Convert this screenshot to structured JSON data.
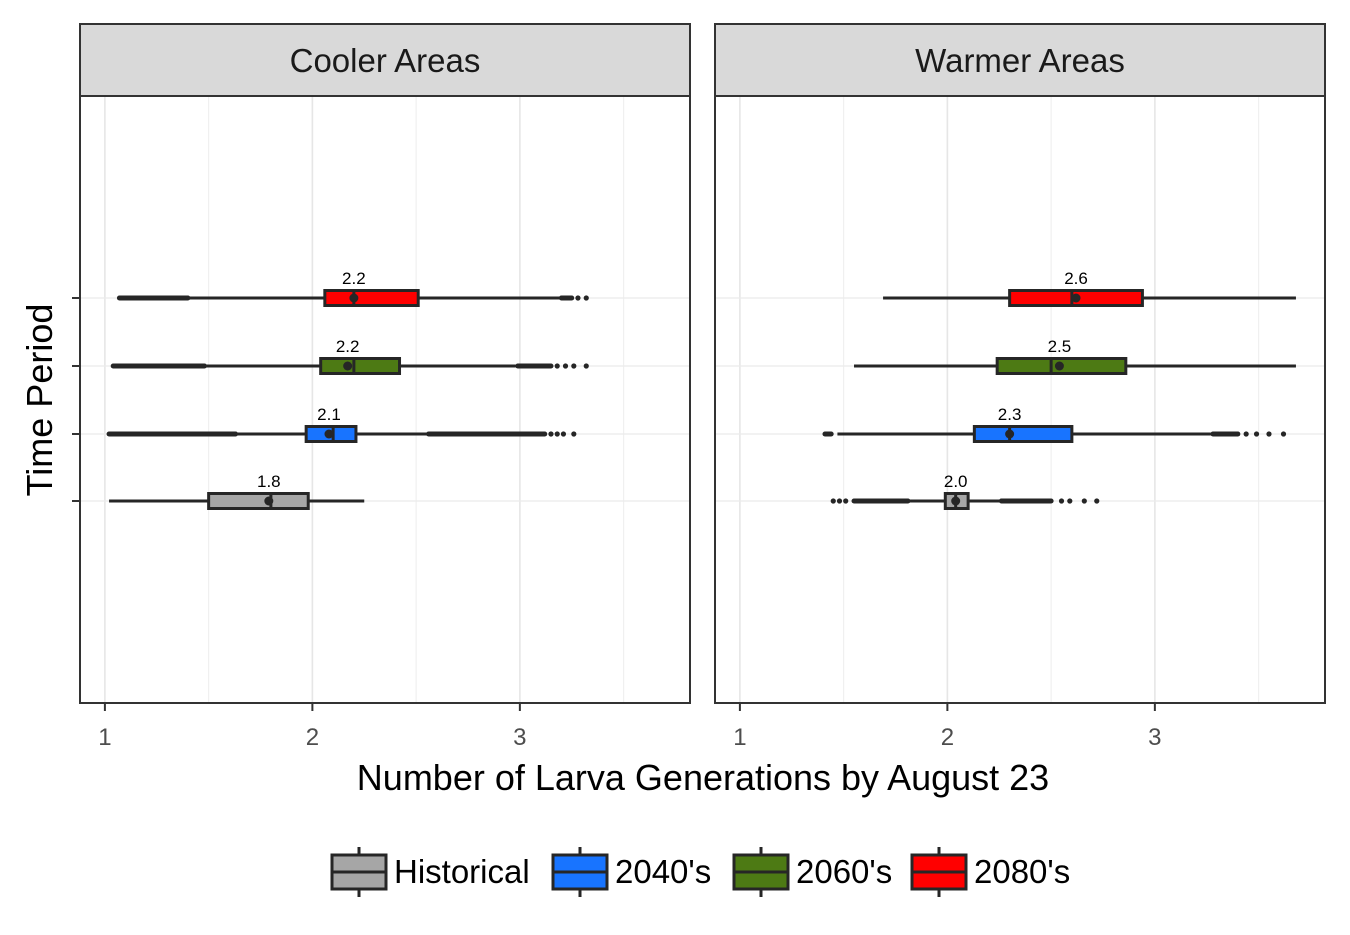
{
  "chart_data": {
    "type": "boxplot",
    "xlabel": "Number of Larva Generations by August 23",
    "ylabel": "Time Period",
    "xlim": [
      0.88,
      3.82
    ],
    "x_ticks": [
      1,
      2,
      3
    ],
    "y_categories": [
      "Historical",
      "2040's",
      "2060's",
      "2080's"
    ],
    "grid": true,
    "legend": {
      "placement": "bottom",
      "entries": [
        {
          "name": "Historical",
          "color": "#A6A6A6"
        },
        {
          "name": "2040's",
          "color": "#1874FF"
        },
        {
          "name": "2060's",
          "color": "#4D7A14"
        },
        {
          "name": "2080's",
          "color": "#FF0000"
        }
      ]
    },
    "panels": [
      {
        "title": "Cooler Areas",
        "series": [
          {
            "name": "Historical",
            "whisker_low": 1.02,
            "q1": 1.5,
            "median": 1.8,
            "q3": 1.98,
            "whisker_high": 2.25,
            "mean": 1.79,
            "label": "1.8",
            "outliers": []
          },
          {
            "name": "2040's",
            "whisker_low": 1.64,
            "q1": 1.97,
            "median": 2.1,
            "q3": 2.21,
            "whisker_high": 2.55,
            "mean": 2.08,
            "label": "2.1",
            "outliers_low_range": [
              1.02,
              1.63
            ],
            "outliers_high_range": [
              2.56,
              3.12
            ],
            "outliers": [
              3.15,
              3.18,
              3.21,
              3.26
            ]
          },
          {
            "name": "2060's",
            "whisker_low": 1.49,
            "q1": 2.04,
            "median": 2.2,
            "q3": 2.42,
            "whisker_high": 2.98,
            "mean": 2.17,
            "label": "2.2",
            "outliers_low_range": [
              1.04,
              1.48
            ],
            "outliers_high_range": [
              2.99,
              3.15
            ],
            "outliers": [
              3.18,
              3.22,
              3.26,
              3.32
            ]
          },
          {
            "name": "2080's",
            "whisker_low": 1.41,
            "q1": 2.06,
            "median": 2.2,
            "q3": 2.51,
            "whisker_high": 3.19,
            "mean": 2.2,
            "label": "2.2",
            "outliers_low_range": [
              1.07,
              1.4
            ],
            "outliers_high_range": [
              3.2,
              3.25
            ],
            "outliers": [
              3.28,
              3.32
            ]
          }
        ]
      },
      {
        "title": "Warmer Areas",
        "series": [
          {
            "name": "Historical",
            "whisker_low": 1.82,
            "q1": 1.99,
            "median": 2.04,
            "q3": 2.1,
            "whisker_high": 2.25,
            "mean": 2.04,
            "label": "2.0",
            "outliers_low_range": [
              1.55,
              1.81
            ],
            "outliers_high_range": [
              2.26,
              2.5
            ],
            "outliers": [
              1.45,
              1.48,
              1.51,
              2.55,
              2.59,
              2.66,
              2.72
            ]
          },
          {
            "name": "2040's",
            "whisker_low": 1.47,
            "q1": 2.13,
            "median": 2.3,
            "q3": 2.6,
            "whisker_high": 3.27,
            "mean": 2.3,
            "label": "2.3",
            "outliers_low_range": [
              1.41,
              1.44
            ],
            "outliers_high_range": [
              3.28,
              3.4
            ],
            "outliers": [
              3.44,
              3.49,
              3.55,
              3.62
            ]
          },
          {
            "name": "2060's",
            "whisker_low": 1.55,
            "q1": 2.24,
            "median": 2.5,
            "q3": 2.86,
            "whisker_high": 3.68,
            "mean": 2.54,
            "label": "2.5",
            "outliers": []
          },
          {
            "name": "2080's",
            "whisker_low": 1.69,
            "q1": 2.3,
            "median": 2.6,
            "q3": 2.94,
            "whisker_high": 3.68,
            "mean": 2.62,
            "label": "2.6",
            "outliers": []
          }
        ]
      }
    ]
  }
}
